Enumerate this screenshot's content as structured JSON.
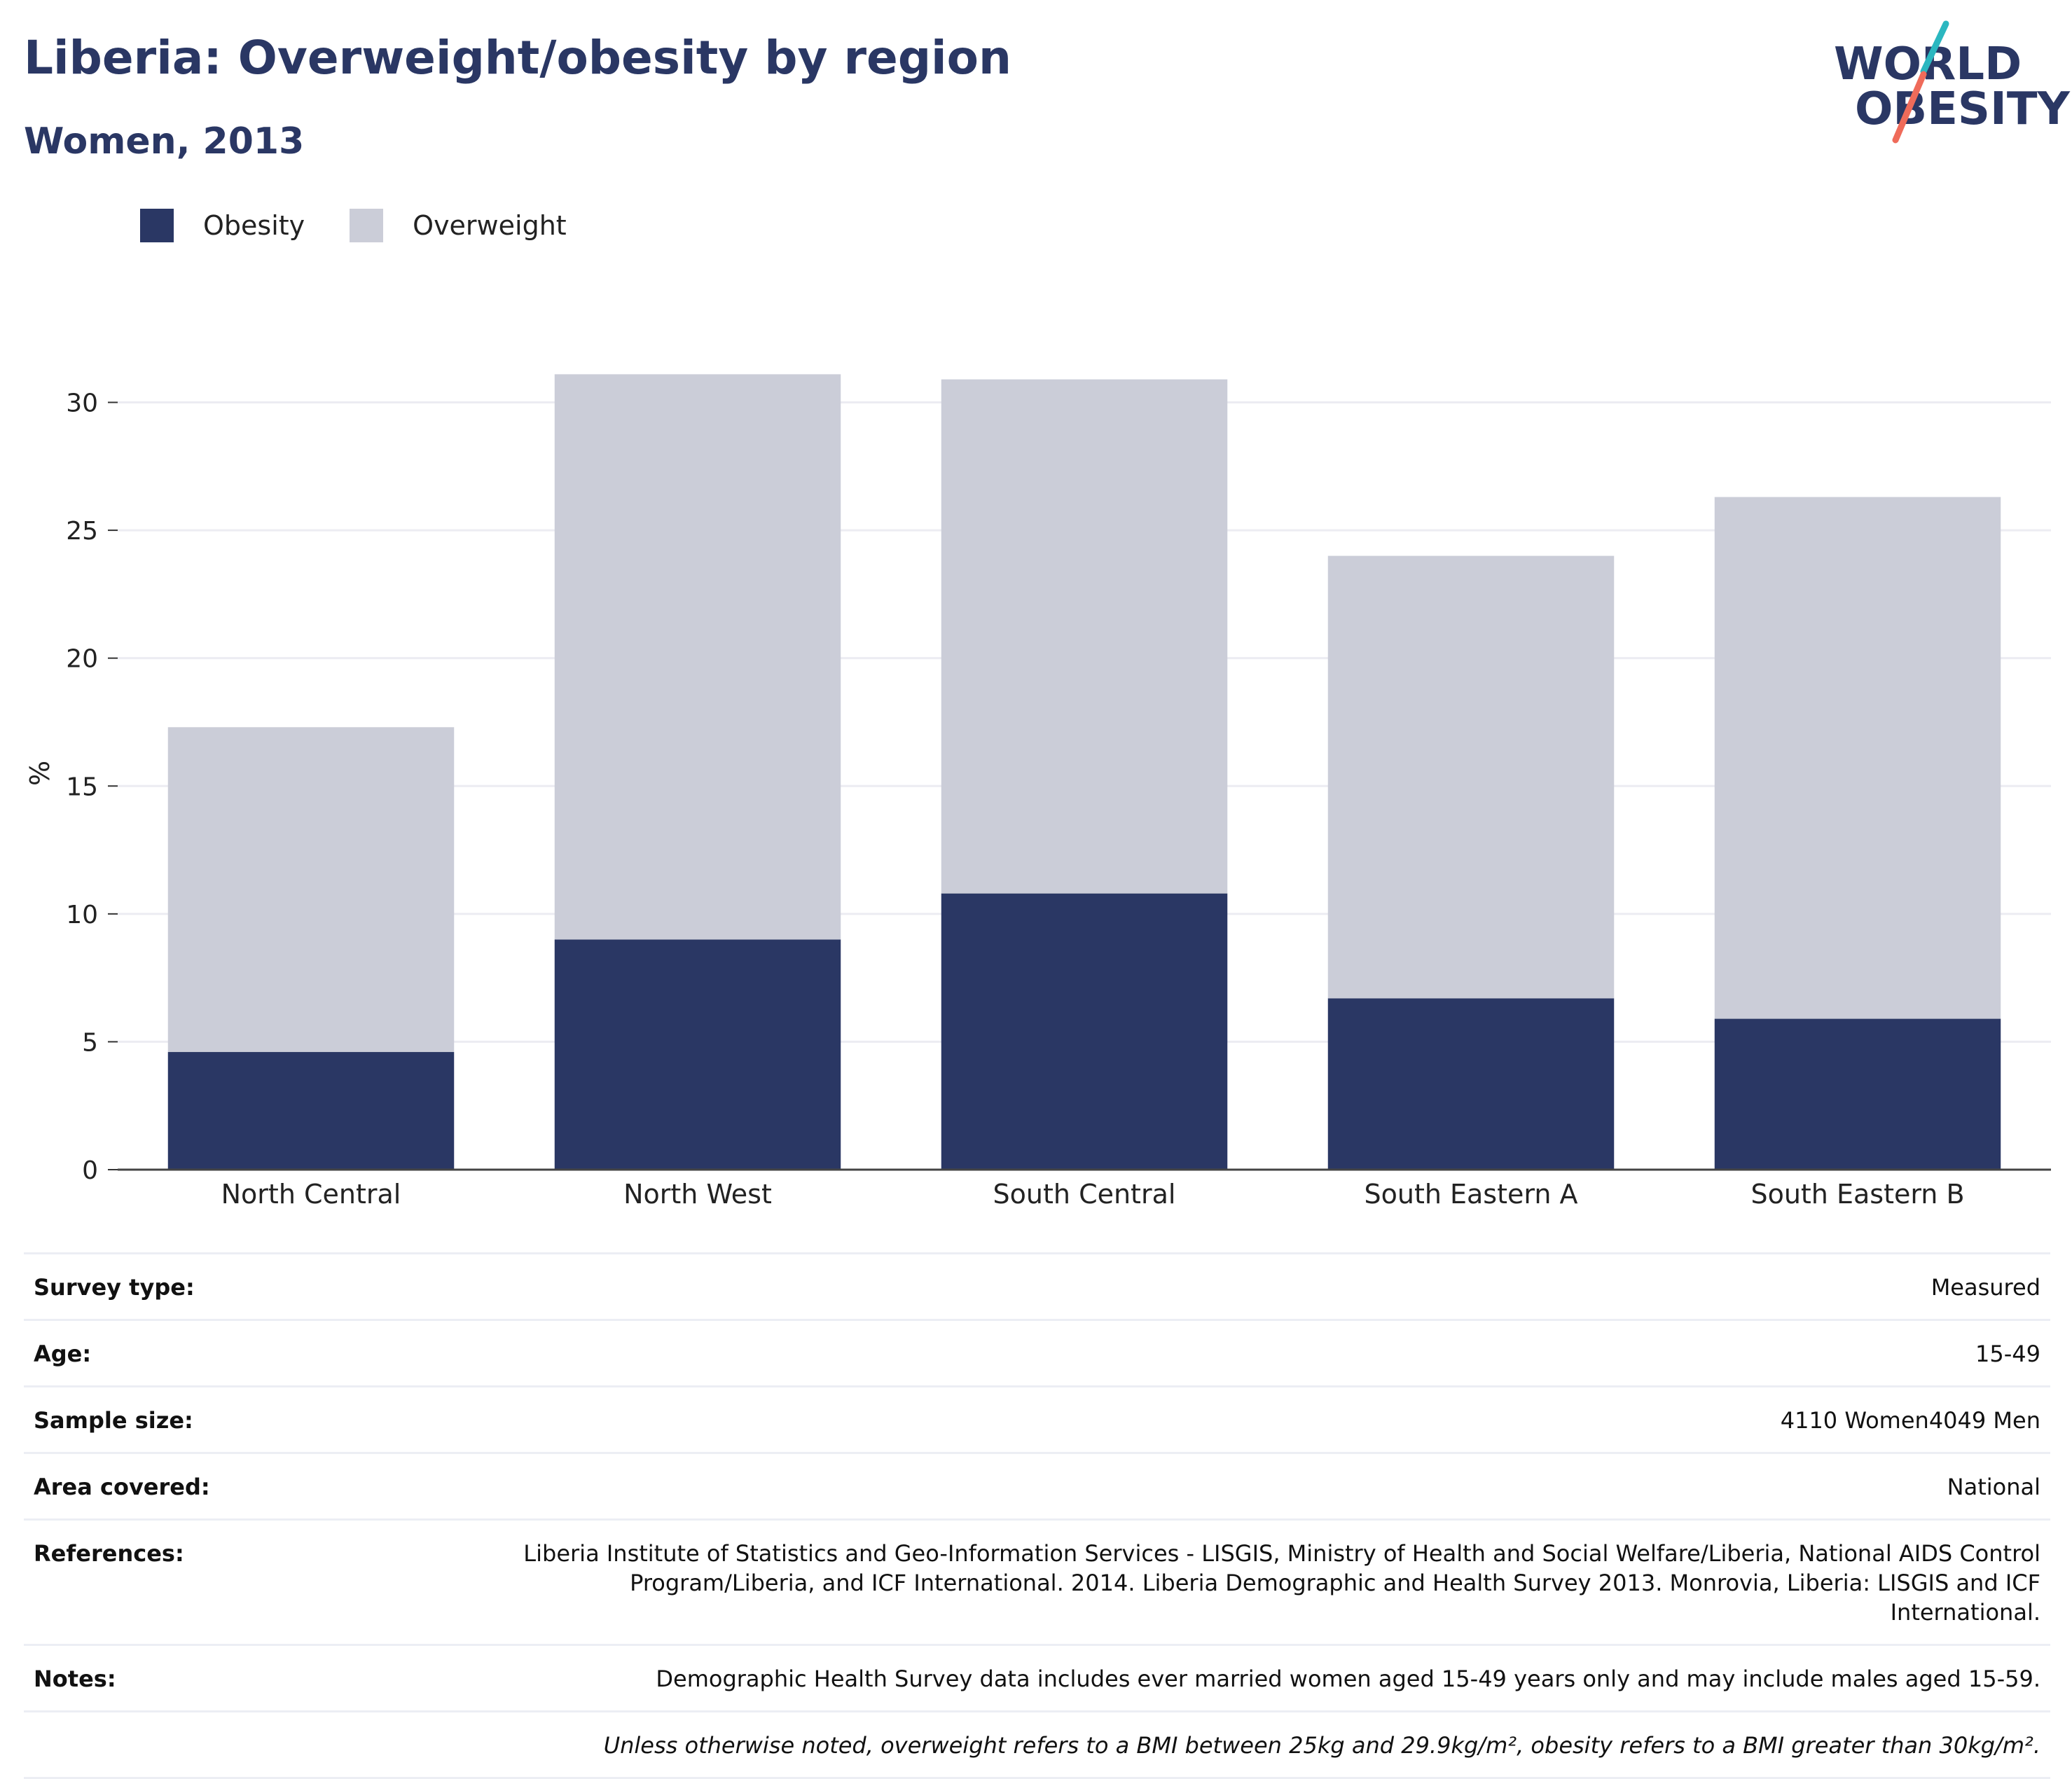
{
  "header": {
    "title": "Liberia: Overweight/obesity by region",
    "subtitle": "Women, 2013"
  },
  "logo": {
    "line1": "WORLD",
    "line2": "OBESITY",
    "colors": {
      "teal": "#2bb7c0",
      "coral": "#ef6b5a"
    }
  },
  "legend": [
    {
      "label": "Obesity",
      "color": "#2a3764"
    },
    {
      "label": "Overweight",
      "color": "#cbcdd8"
    }
  ],
  "chart_data": {
    "type": "bar",
    "stacked": true,
    "categories": [
      "North Central",
      "North West",
      "South Central",
      "South Eastern A",
      "South Eastern B"
    ],
    "series": [
      {
        "name": "Obesity",
        "color": "#2a3764",
        "values": [
          4.6,
          9.0,
          10.8,
          6.7,
          5.9
        ]
      },
      {
        "name": "Overweight",
        "color": "#cbcdd8",
        "values": [
          12.7,
          22.1,
          20.1,
          17.3,
          20.4
        ]
      }
    ],
    "ylabel": "%",
    "ylim": [
      0,
      31
    ],
    "yticks": [
      0,
      5,
      10,
      15,
      20,
      25,
      30
    ],
    "grid": true
  },
  "info": {
    "rows": [
      {
        "key": "Survey type:",
        "value": "Measured"
      },
      {
        "key": "Age:",
        "value": "15-49"
      },
      {
        "key": "Sample size:",
        "value": "4110 Women4049 Men"
      },
      {
        "key": "Area covered:",
        "value": "National"
      },
      {
        "key": "References:",
        "value": "Liberia Institute of Statistics and Geo-Information Services - LISGIS, Ministry of Health and Social Welfare/Liberia, National AIDS Control Program/Liberia, and ICF International. 2014. Liberia Demographic and Health Survey 2013. Monrovia, Liberia: LISGIS and ICF International."
      },
      {
        "key": "Notes:",
        "value": "Demographic Health Survey data includes ever married women aged 15-49 years only and may include males aged 15-59."
      }
    ],
    "footnote": "Unless otherwise noted, overweight refers to a BMI between 25kg and 29.9kg/m², obesity refers to a BMI greater than 30kg/m²."
  }
}
